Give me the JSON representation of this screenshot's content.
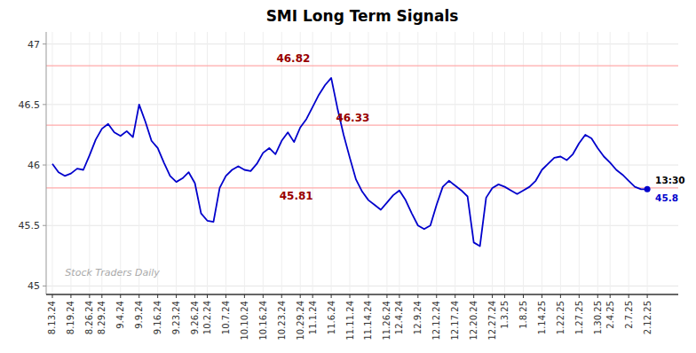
{
  "chart_data": {
    "type": "line",
    "title": "SMI Long Term Signals",
    "color": "#0000cc",
    "grid": true,
    "ylim": [
      44.93,
      47.1
    ],
    "yticks": [
      45.0,
      45.5,
      46.0,
      46.5,
      47.0
    ],
    "categories": [
      "8.13.24",
      null,
      null,
      "8.19.24",
      null,
      null,
      "8.26.24",
      null,
      "8.29.24",
      null,
      null,
      "9.4.24",
      null,
      null,
      "9.9.24",
      null,
      null,
      "9.16.24",
      null,
      null,
      "9.23.24",
      null,
      null,
      "9.26.24",
      null,
      "10.2.24",
      null,
      null,
      "10.7.24",
      null,
      null,
      "10.10.24",
      null,
      null,
      "10.16.24",
      null,
      null,
      "10.23.24",
      null,
      null,
      "10.29.24",
      null,
      "11.1.24",
      null,
      null,
      "11.6.24",
      null,
      null,
      "11.11.24",
      null,
      null,
      "11.14.24",
      null,
      null,
      "11.26.24",
      null,
      "12.4.24",
      null,
      null,
      "12.9.24",
      null,
      null,
      "12.12.24",
      null,
      null,
      "12.17.24",
      null,
      null,
      "12.20.24",
      null,
      null,
      "12.27.24",
      null,
      "1.3.25",
      null,
      null,
      "1.8.25",
      null,
      null,
      "1.14.25",
      null,
      null,
      "1.22.25",
      null,
      null,
      "1.27.25",
      null,
      null,
      "1.30.25",
      null,
      "2.4.25",
      null,
      null,
      "2.7.25",
      null,
      null,
      "2.12.25"
    ],
    "values": [
      46.01,
      45.94,
      45.91,
      45.93,
      45.97,
      45.96,
      46.08,
      46.21,
      46.3,
      46.34,
      46.27,
      46.24,
      46.28,
      46.23,
      46.5,
      46.36,
      46.2,
      46.14,
      46.02,
      45.91,
      45.86,
      45.89,
      45.94,
      45.85,
      45.6,
      45.54,
      45.53,
      45.81,
      45.91,
      45.96,
      45.99,
      45.96,
      45.95,
      46.01,
      46.1,
      46.14,
      46.09,
      46.2,
      46.27,
      46.19,
      46.31,
      46.38,
      46.48,
      46.58,
      46.66,
      46.72,
      46.47,
      46.25,
      46.06,
      45.88,
      45.78,
      45.71,
      45.67,
      45.63,
      45.69,
      45.75,
      45.79,
      45.71,
      45.6,
      45.5,
      45.47,
      45.5,
      45.67,
      45.82,
      45.87,
      45.83,
      45.79,
      45.74,
      45.36,
      45.33,
      45.73,
      45.81,
      45.84,
      45.82,
      45.79,
      45.76,
      45.79,
      45.82,
      45.87,
      45.96,
      46.01,
      46.06,
      46.07,
      46.04,
      46.09,
      46.18,
      46.25,
      46.22,
      46.14,
      46.07,
      46.02,
      45.96,
      45.92,
      45.87,
      45.82,
      45.8,
      45.8
    ],
    "reference_lines": [
      {
        "value": 46.82,
        "label": "46.82"
      },
      {
        "value": 46.33,
        "label": "46.33"
      },
      {
        "value": 45.81,
        "label": "45.81"
      }
    ],
    "reference_line_color": "#ffaaaa",
    "reference_label_color": "#990000",
    "last_point_label": {
      "time": "13:30",
      "value": "45.8"
    },
    "watermark": "Stock Traders Daily"
  }
}
